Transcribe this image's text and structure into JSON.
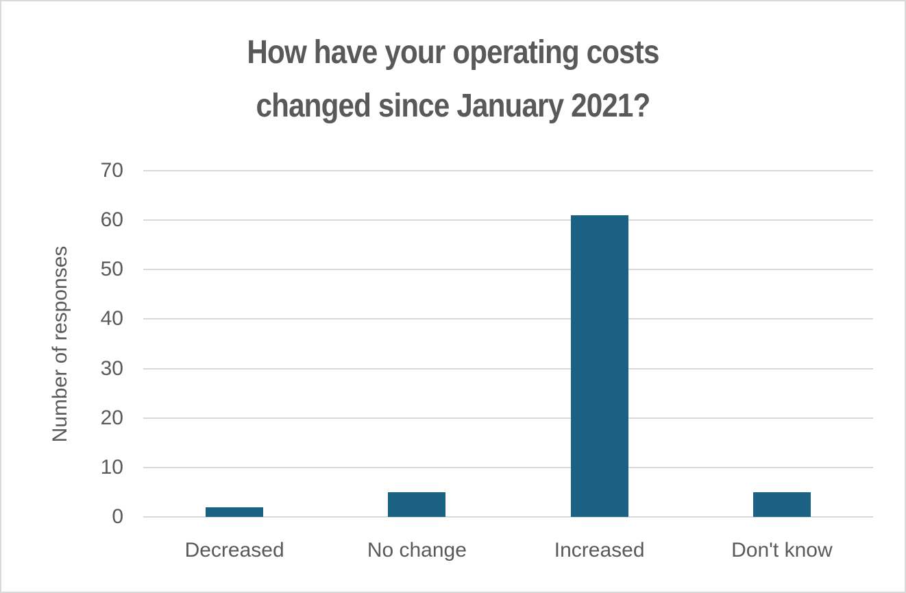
{
  "chart_data": {
    "type": "bar",
    "title": "How have your operating costs changed since January 2021?",
    "title_line1": "How have your operating costs",
    "title_line2": "changed since January 2021?",
    "categories": [
      "Decreased",
      "No change",
      "Increased",
      "Don't know"
    ],
    "values": [
      2,
      5,
      61,
      5
    ],
    "xlabel": "",
    "ylabel": "Number of responses",
    "ylim": [
      0,
      70
    ],
    "ytick_step": 10,
    "yticks": [
      0,
      10,
      20,
      30,
      40,
      50,
      60,
      70
    ],
    "grid": "horizontal",
    "legend": "none",
    "bar_color": "#1A6183",
    "gridline_color": "#D9D9D9",
    "text_color": "#595959",
    "background": "#FFFFFF"
  }
}
